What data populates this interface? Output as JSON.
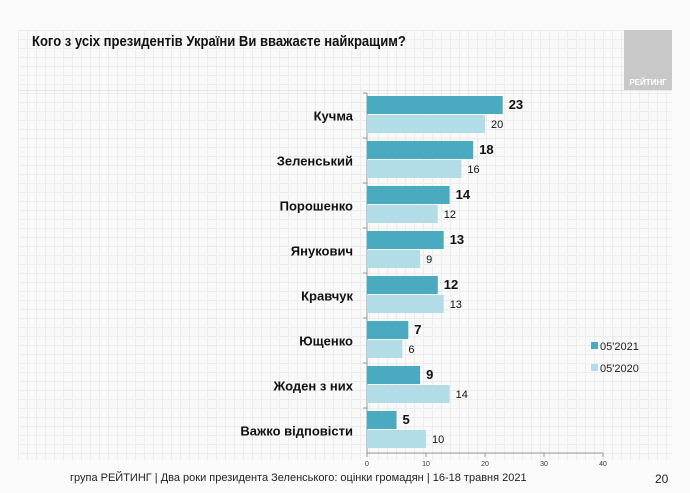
{
  "header": {
    "logo_text": "РЕЙТИНГ"
  },
  "footer": {
    "text": "група РЕЙТИНГ | Два роки президента Зеленського: оцінки громадян  | 16-18 травня 2021",
    "page_number": "20"
  },
  "colors": {
    "series_2021": "#4aabc0",
    "series_2020": "#b3dde6"
  },
  "chart_data": {
    "type": "bar",
    "orientation": "horizontal",
    "title": "Кого з усіх президентів України Ви вважаєте найкращим?",
    "categories": [
      "Кучма",
      "Зеленський",
      "Порошенко",
      "Янукович",
      "Кравчук",
      "Ющенко",
      "Жоден з них",
      "Важко відповісти"
    ],
    "series": [
      {
        "name": "05'2021",
        "values": [
          23,
          18,
          14,
          13,
          12,
          7,
          9,
          5
        ]
      },
      {
        "name": "05'2020",
        "values": [
          20,
          16,
          12,
          9,
          13,
          6,
          14,
          10
        ]
      }
    ],
    "xlim": [
      0,
      40
    ],
    "xticks": [
      "0",
      "10",
      "20",
      "30",
      "40"
    ],
    "legend": "right",
    "grid": false
  }
}
